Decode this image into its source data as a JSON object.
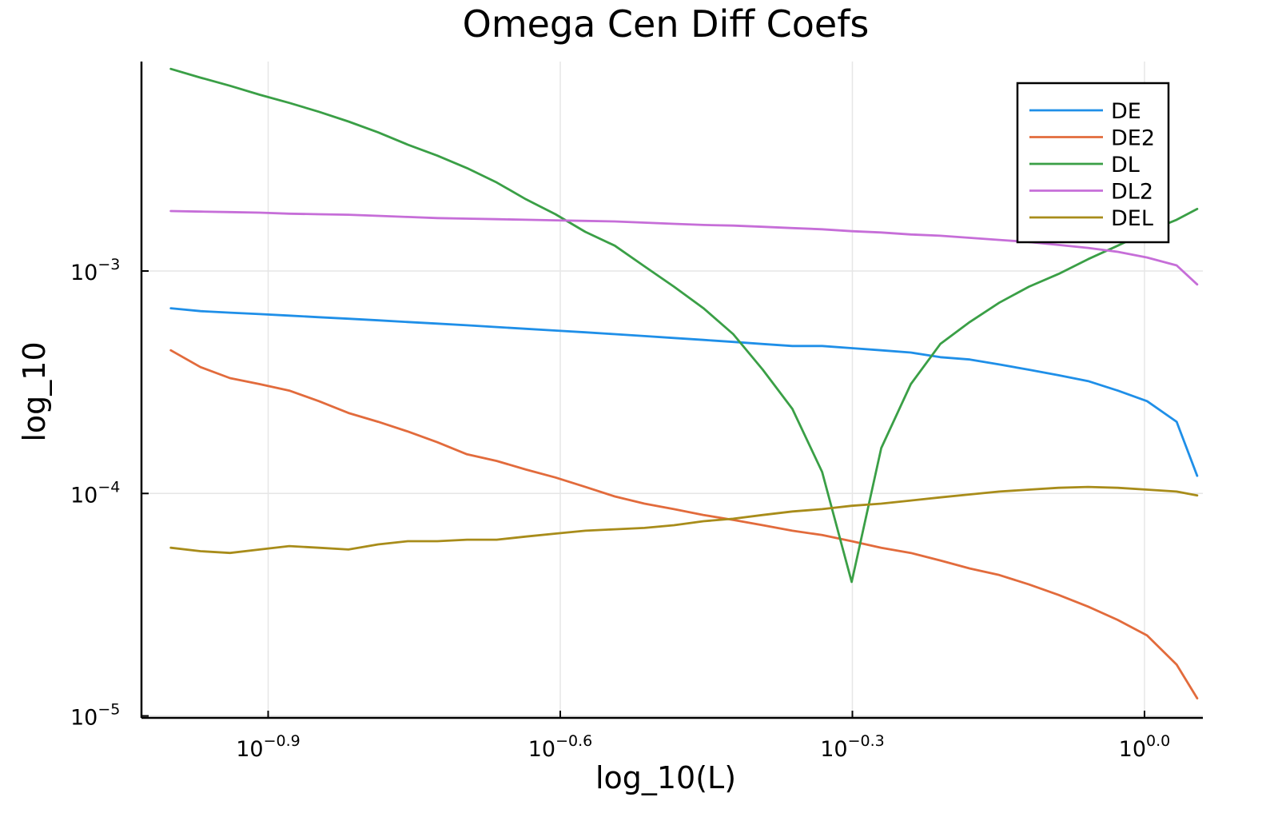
{
  "chart_data": {
    "type": "line",
    "title": "Omega Cen Diff Coefs",
    "xlabel": "log_10(L)",
    "ylabel": "log_10",
    "xscale": "log10",
    "yscale": "log10",
    "xlim": [
      0.0933,
      1.148
    ],
    "ylim": [
      9.8e-06,
      0.00874
    ],
    "x_ticks": [
      {
        "value": 0.12589,
        "base": "10",
        "exp": "−0.9"
      },
      {
        "value": 0.25119,
        "base": "10",
        "exp": "−0.6"
      },
      {
        "value": 0.50119,
        "base": "10",
        "exp": "−0.3"
      },
      {
        "value": 1.0,
        "base": "10",
        "exp": "0.0"
      }
    ],
    "y_ticks": [
      {
        "value": 1e-05,
        "base": "10",
        "exp": "−5"
      },
      {
        "value": 0.0001,
        "base": "10",
        "exp": "−4"
      },
      {
        "value": 0.001,
        "base": "10",
        "exp": "−3"
      }
    ],
    "grid": true,
    "legend_position": "top-right",
    "x": [
      0.1,
      0.10727,
      0.11503,
      0.12339,
      0.13234,
      0.14194,
      0.15222,
      0.16328,
      0.1751,
      0.18782,
      0.20148,
      0.21615,
      0.23162,
      0.24837,
      0.26648,
      0.28577,
      0.30649,
      0.32871,
      0.35246,
      0.37808,
      0.40554,
      0.43488,
      0.46653,
      0.50035,
      0.53656,
      0.57543,
      0.61703,
      0.66161,
      0.70927,
      0.76094,
      0.81602,
      0.87512,
      0.93868,
      1.0062,
      1.07891,
      1.1328
    ],
    "series": [
      {
        "name": "DE",
        "color": "#1f8fe8",
        "values": [
          0.00068,
          0.00066,
          0.00065,
          0.00064,
          0.00063,
          0.00062,
          0.00061,
          0.0006,
          0.00059,
          0.00058,
          0.00057,
          0.00056,
          0.00055,
          0.00054,
          0.00053,
          0.00052,
          0.00051,
          0.0005,
          0.00049,
          0.00048,
          0.00047,
          0.00046,
          0.00046,
          0.00045,
          0.00044,
          0.00043,
          0.00041,
          0.0004,
          0.00038,
          0.00036,
          0.00034,
          0.00032,
          0.00029,
          0.00026,
          0.00021,
          0.00012
        ]
      },
      {
        "name": "DE2",
        "color": "#e26b3c",
        "values": [
          0.00044,
          0.00037,
          0.00033,
          0.00031,
          0.00029,
          0.00026,
          0.00023,
          0.00021,
          0.00019,
          0.00017,
          0.00015,
          0.00014,
          0.000128,
          0.000118,
          0.000107,
          9.7e-05,
          9e-05,
          8.5e-05,
          8e-05,
          7.6e-05,
          7.2e-05,
          6.8e-05,
          6.5e-05,
          6.1e-05,
          5.7e-05,
          5.4e-05,
          5e-05,
          4.6e-05,
          4.3e-05,
          3.9e-05,
          3.5e-05,
          3.1e-05,
          2.7e-05,
          2.3e-05,
          1.7e-05,
          1.2e-05
        ]
      },
      {
        "name": "DL",
        "color": "#3a9f46",
        "values": [
          0.0081,
          0.0074,
          0.0068,
          0.0062,
          0.0057,
          0.0052,
          0.0047,
          0.0042,
          0.0037,
          0.0033,
          0.0029,
          0.0025,
          0.0021,
          0.0018,
          0.0015,
          0.0013,
          0.00105,
          0.00085,
          0.00068,
          0.00052,
          0.00036,
          0.00024,
          0.000125,
          4e-05,
          0.00016,
          0.00031,
          0.00047,
          0.00059,
          0.00072,
          0.00085,
          0.00097,
          0.00113,
          0.0013,
          0.0015,
          0.0017,
          0.0019
        ]
      },
      {
        "name": "DL2",
        "color": "#c66ed8",
        "values": [
          0.00186,
          0.00185,
          0.00184,
          0.00183,
          0.00181,
          0.0018,
          0.00179,
          0.00177,
          0.00175,
          0.00173,
          0.00172,
          0.00171,
          0.0017,
          0.00169,
          0.00168,
          0.00167,
          0.00165,
          0.00163,
          0.00161,
          0.0016,
          0.00158,
          0.00156,
          0.00154,
          0.00151,
          0.00149,
          0.00146,
          0.00144,
          0.00141,
          0.00138,
          0.00135,
          0.00131,
          0.00127,
          0.00122,
          0.00115,
          0.00106,
          0.00087
        ]
      },
      {
        "name": "DEL",
        "color": "#a88c1a",
        "values": [
          5.7e-05,
          5.5e-05,
          5.4e-05,
          5.6e-05,
          5.8e-05,
          5.7e-05,
          5.6e-05,
          5.9e-05,
          6.1e-05,
          6.1e-05,
          6.2e-05,
          6.2e-05,
          6.4e-05,
          6.6e-05,
          6.8e-05,
          6.9e-05,
          7e-05,
          7.2e-05,
          7.5e-05,
          7.7e-05,
          8e-05,
          8.3e-05,
          8.5e-05,
          8.8e-05,
          9e-05,
          9.3e-05,
          9.6e-05,
          9.9e-05,
          0.000102,
          0.000104,
          0.000106,
          0.000107,
          0.000106,
          0.000104,
          0.000102,
          9.8e-05
        ]
      }
    ]
  }
}
